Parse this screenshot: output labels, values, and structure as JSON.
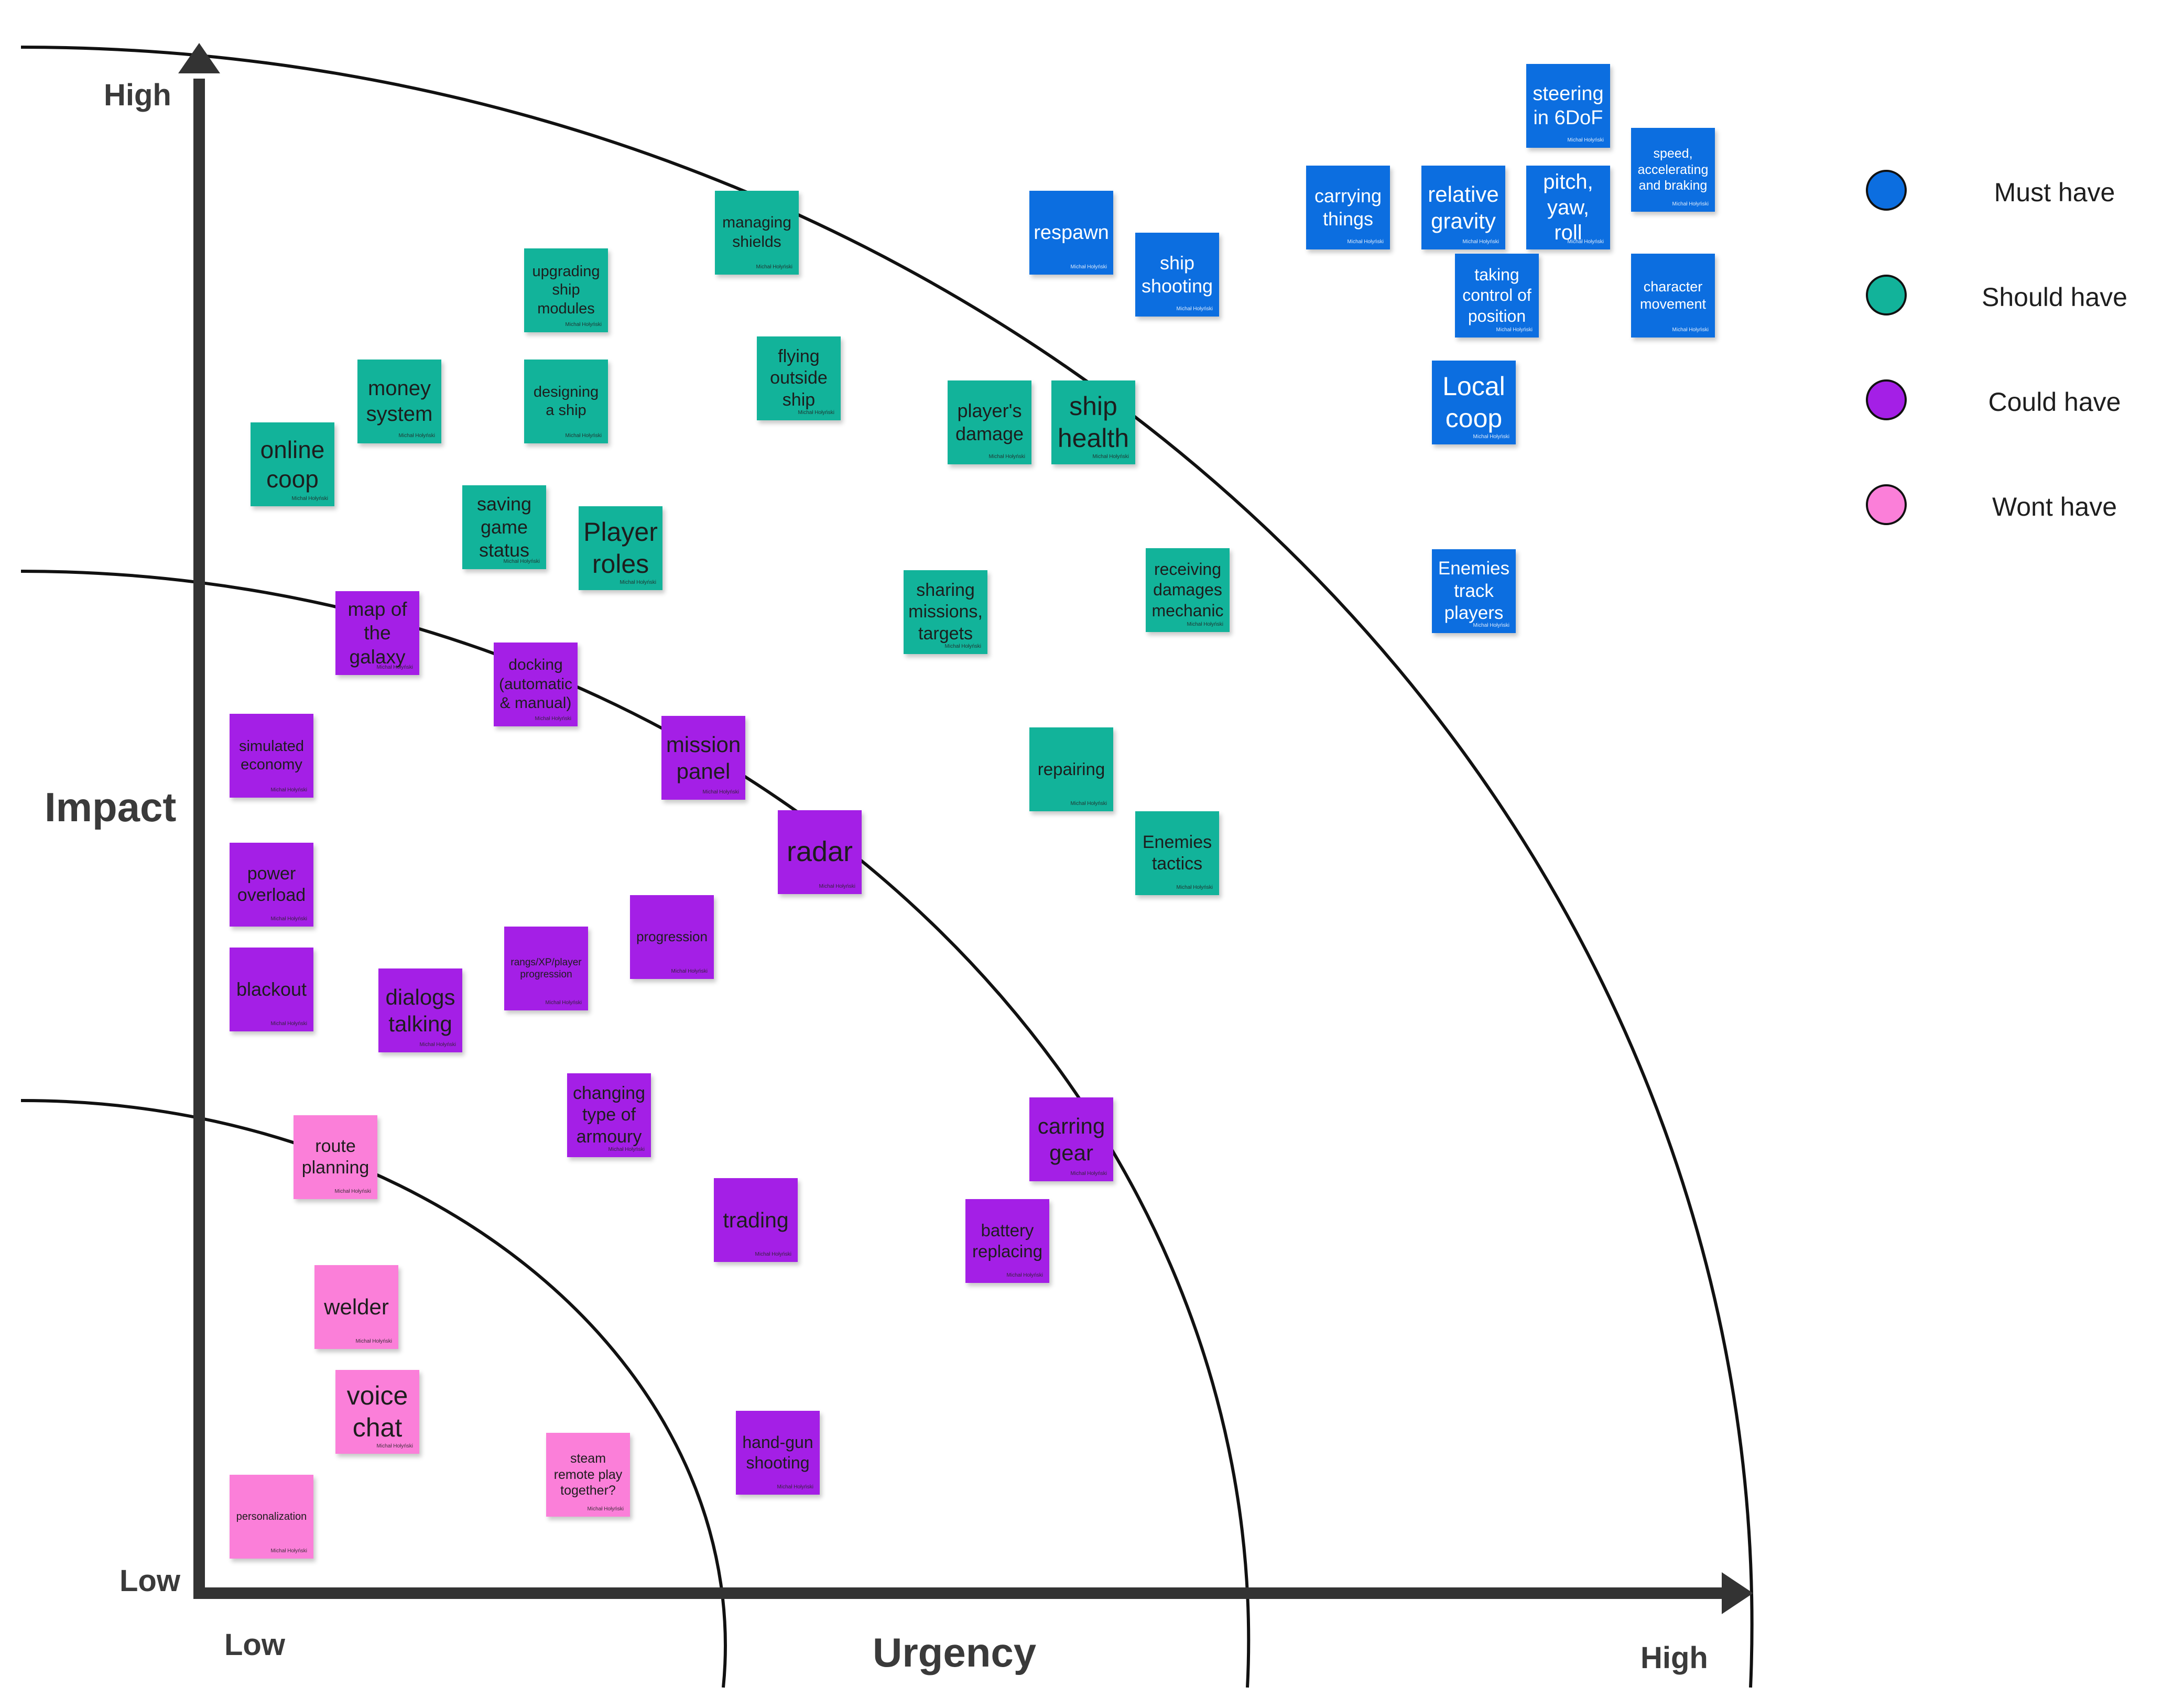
{
  "axes": {
    "y_title": "Impact",
    "x_title": "Urgency",
    "y_high": "High",
    "y_low": "Low",
    "x_low": "Low",
    "x_high": "High"
  },
  "colors": {
    "must": "#0c6ee0",
    "should": "#12b39a",
    "could": "#a41fe6",
    "wont": "#fb7fd9",
    "axis": "#333333"
  },
  "legend": [
    {
      "label": "Must have",
      "color": "#0c6ee0"
    },
    {
      "label": "Should have",
      "color": "#12b39a"
    },
    {
      "label": "Could have",
      "color": "#a41fe6"
    },
    {
      "label": "Wont have",
      "color": "#fb7fd9"
    }
  ],
  "author": "Michał Hołyński",
  "notes": [
    {
      "text": "steering\nin 6DoF",
      "category": "must"
    },
    {
      "text": "speed,\naccelerating\nand braking",
      "category": "must"
    },
    {
      "text": "carrying\nthings",
      "category": "must"
    },
    {
      "text": "relative\ngravity",
      "category": "must"
    },
    {
      "text": "pitch,\nyaw, roll",
      "category": "must"
    },
    {
      "text": "respawn",
      "category": "must"
    },
    {
      "text": "ship\nshooting",
      "category": "must"
    },
    {
      "text": "taking\ncontrol of\nposition",
      "category": "must"
    },
    {
      "text": "character\nmovement",
      "category": "must"
    },
    {
      "text": "Local\ncoop",
      "category": "must"
    },
    {
      "text": "Enemies\ntrack\nplayers",
      "category": "must"
    },
    {
      "text": "managing\nshields",
      "category": "should"
    },
    {
      "text": "upgrading\nship\nmodules",
      "category": "should"
    },
    {
      "text": "money\nsystem",
      "category": "should"
    },
    {
      "text": "designing\na ship",
      "category": "should"
    },
    {
      "text": "flying\noutside\nship",
      "category": "should"
    },
    {
      "text": "player's\ndamage",
      "category": "should"
    },
    {
      "text": "ship\nhealth",
      "category": "should"
    },
    {
      "text": "online\ncoop",
      "category": "should"
    },
    {
      "text": "saving\ngame\nstatus",
      "category": "should"
    },
    {
      "text": "Player\nroles",
      "category": "should"
    },
    {
      "text": "sharing\nmissions,\ntargets",
      "category": "should"
    },
    {
      "text": "receiving\ndamages\nmechanic",
      "category": "should"
    },
    {
      "text": "repairing",
      "category": "should"
    },
    {
      "text": "Enemies\ntactics",
      "category": "should"
    },
    {
      "text": "map of\nthe\ngalaxy",
      "category": "could"
    },
    {
      "text": "docking\n(automatic\n& manual)",
      "category": "could"
    },
    {
      "text": "simulated\neconomy",
      "category": "could"
    },
    {
      "text": "mission\npanel",
      "category": "could"
    },
    {
      "text": "radar",
      "category": "could"
    },
    {
      "text": "power\noverload",
      "category": "could"
    },
    {
      "text": "progression",
      "category": "could"
    },
    {
      "text": "rangs/XP/player\nprogression",
      "category": "could"
    },
    {
      "text": "blackout",
      "category": "could"
    },
    {
      "text": "dialogs\ntalking",
      "category": "could"
    },
    {
      "text": "changing\ntype of\narmoury",
      "category": "could"
    },
    {
      "text": "carring\ngear",
      "category": "could"
    },
    {
      "text": "trading",
      "category": "could"
    },
    {
      "text": "battery\nreplacing",
      "category": "could"
    },
    {
      "text": "hand-gun\nshooting",
      "category": "could"
    },
    {
      "text": "route\nplanning",
      "category": "wont"
    },
    {
      "text": "welder",
      "category": "wont"
    },
    {
      "text": "voice\nchat",
      "category": "wont"
    },
    {
      "text": "steam\nremote play\ntogether?",
      "category": "wont"
    },
    {
      "text": "personalization",
      "category": "wont"
    }
  ]
}
